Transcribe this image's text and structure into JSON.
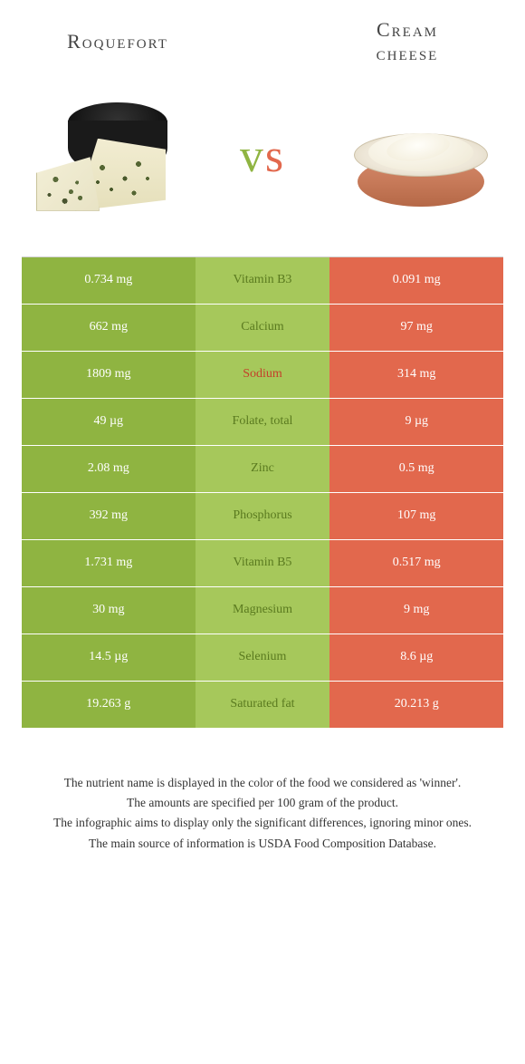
{
  "colors": {
    "left": "#8fb441",
    "mid": "#a6c85b",
    "right": "#e2684d",
    "left_text": "#ffffff",
    "right_text": "#ffffff",
    "nutrient_left_winner": "#5a7a1f",
    "nutrient_right_winner": "#c4402a",
    "background": "#ffffff"
  },
  "foods": {
    "left": {
      "name": "Roquefort"
    },
    "right": {
      "name_line1": "Cream",
      "name_line2": "cheese"
    }
  },
  "vs_label": "vs",
  "table": {
    "type": "comparison-table",
    "rows": [
      {
        "nutrient": "Vitamin B3",
        "left": "0.734 mg",
        "right": "0.091 mg",
        "winner": "left"
      },
      {
        "nutrient": "Calcium",
        "left": "662 mg",
        "right": "97 mg",
        "winner": "left"
      },
      {
        "nutrient": "Sodium",
        "left": "1809 mg",
        "right": "314 mg",
        "winner": "right"
      },
      {
        "nutrient": "Folate, total",
        "left": "49 µg",
        "right": "9 µg",
        "winner": "left"
      },
      {
        "nutrient": "Zinc",
        "left": "2.08 mg",
        "right": "0.5 mg",
        "winner": "left"
      },
      {
        "nutrient": "Phosphorus",
        "left": "392 mg",
        "right": "107 mg",
        "winner": "left"
      },
      {
        "nutrient": "Vitamin B5",
        "left": "1.731 mg",
        "right": "0.517 mg",
        "winner": "left"
      },
      {
        "nutrient": "Magnesium",
        "left": "30 mg",
        "right": "9 mg",
        "winner": "left"
      },
      {
        "nutrient": "Selenium",
        "left": "14.5 µg",
        "right": "8.6 µg",
        "winner": "left"
      },
      {
        "nutrient": "Saturated fat",
        "left": "19.263 g",
        "right": "20.213 g",
        "winner": "left"
      }
    ]
  },
  "footer": {
    "lines": [
      "The nutrient name is displayed in the color of the food we considered as 'winner'.",
      "The amounts are specified per 100 gram of the product.",
      "The infographic aims to display only the significant differences, ignoring minor ones.",
      "The main source of information is USDA Food Composition Database."
    ]
  }
}
